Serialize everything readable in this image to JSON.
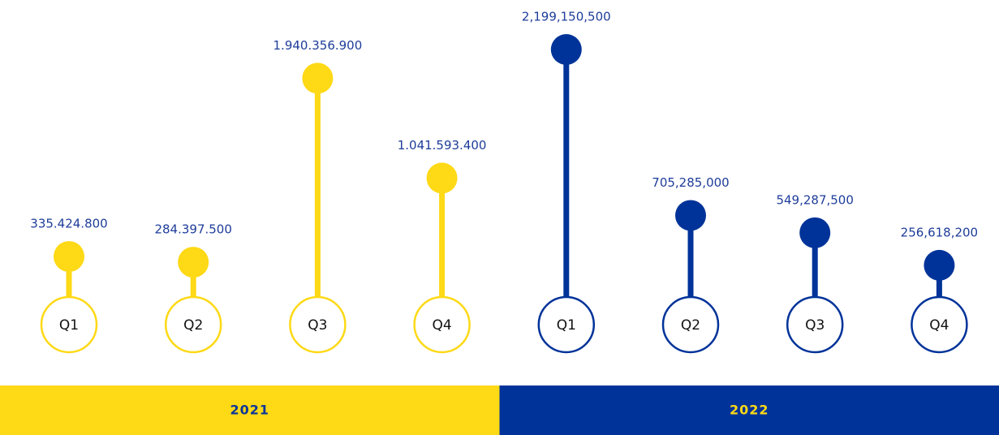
{
  "chart_data": {
    "type": "lollipop",
    "groups": [
      {
        "name": "2021",
        "color": "#fdd916",
        "text_color": "#0d3796",
        "categories": [
          "Q1",
          "Q2",
          "Q3",
          "Q4"
        ],
        "values": [
          335424800,
          284397500,
          1940356900,
          1041593400
        ],
        "value_labels": [
          "335.424.800",
          "284.397.500",
          "1.940.356.900",
          "1.041.593.400"
        ]
      },
      {
        "name": "2022",
        "color": "#003399",
        "text_color": "#fdd916",
        "categories": [
          "Q1",
          "Q2",
          "Q3",
          "Q4"
        ],
        "values": [
          2199150500,
          705285000,
          549287500,
          256618200
        ],
        "value_labels": [
          "2,199,150,500",
          "705,285,000",
          "549,287,500",
          "256,618,200"
        ]
      }
    ]
  }
}
